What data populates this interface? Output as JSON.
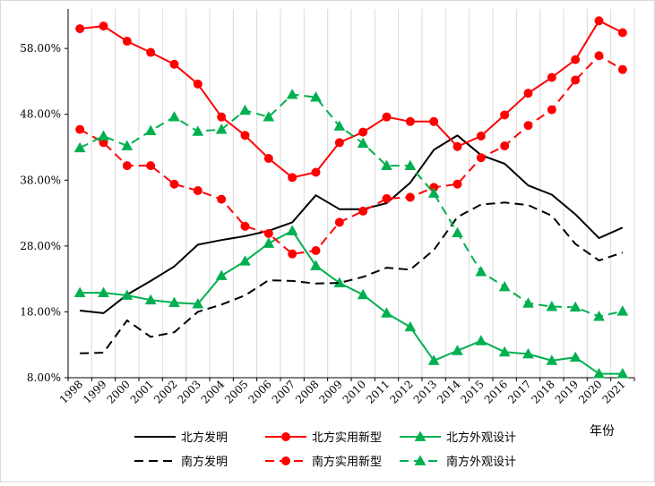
{
  "chart_data": {
    "type": "line",
    "title": "",
    "xlabel": "年份",
    "ylabel": "",
    "ylim": [
      8,
      64
    ],
    "y_ticks": [
      "8.00%",
      "18.00%",
      "28.00%",
      "38.00%",
      "48.00%",
      "58.00%"
    ],
    "grid": "vertical",
    "legend_position": "bottom",
    "categories": [
      "1998",
      "1999",
      "2000",
      "2001",
      "2002",
      "2003",
      "2004",
      "2005",
      "2006",
      "2007",
      "2008",
      "2009",
      "2010",
      "2011",
      "2012",
      "2013",
      "2014",
      "2015",
      "2016",
      "2017",
      "2018",
      "2019",
      "2020",
      "2021"
    ],
    "series": [
      {
        "name": "北方发明",
        "color": "#000000",
        "dashed": false,
        "marker": "none",
        "values": [
          18.2,
          17.8,
          20.6,
          22.7,
          24.9,
          28.2,
          28.9,
          29.5,
          30.3,
          31.6,
          35.7,
          33.6,
          33.6,
          34.5,
          37.6,
          42.6,
          44.8,
          41.8,
          40.5,
          37.2,
          35.8,
          32.8,
          29.2,
          30.8
        ]
      },
      {
        "name": "北方实用新型",
        "color": "#ff0000",
        "dashed": false,
        "marker": "circle",
        "values": [
          61.0,
          61.4,
          59.1,
          57.4,
          55.6,
          52.6,
          47.6,
          44.8,
          41.3,
          38.4,
          39.2,
          43.7,
          45.3,
          47.6,
          46.9,
          46.9,
          43.1,
          44.7,
          47.9,
          51.2,
          53.6,
          56.3,
          62.2,
          60.4
        ]
      },
      {
        "name": "北方外观设计",
        "color": "#00b050",
        "dashed": false,
        "marker": "triangle",
        "values": [
          20.9,
          20.9,
          20.5,
          19.8,
          19.4,
          19.2,
          23.5,
          25.7,
          28.4,
          30.3,
          25.0,
          22.4,
          20.6,
          17.8,
          15.7,
          10.6,
          12.1,
          13.6,
          11.9,
          11.6,
          10.6,
          11.1,
          8.6,
          8.6
        ]
      },
      {
        "name": "南方发明",
        "color": "#000000",
        "dashed": true,
        "marker": "none",
        "values": [
          11.7,
          11.8,
          16.7,
          14.2,
          14.9,
          18.0,
          19.1,
          20.5,
          22.8,
          22.7,
          22.3,
          22.4,
          23.3,
          24.7,
          24.4,
          27.4,
          32.4,
          34.3,
          34.6,
          34.2,
          32.6,
          28.3,
          25.8,
          27.0
        ]
      },
      {
        "name": "南方实用新型",
        "color": "#ff0000",
        "dashed": true,
        "marker": "circle",
        "values": [
          45.7,
          43.7,
          40.2,
          40.2,
          37.4,
          36.4,
          35.1,
          31.0,
          29.9,
          26.8,
          27.3,
          31.6,
          33.3,
          35.2,
          35.4,
          36.9,
          37.4,
          41.4,
          43.2,
          46.3,
          48.7,
          53.2,
          56.9,
          54.8
        ]
      },
      {
        "name": "南方外观设计",
        "color": "#00b050",
        "dashed": true,
        "marker": "triangle",
        "values": [
          42.9,
          44.7,
          43.2,
          45.5,
          47.6,
          45.4,
          45.7,
          48.6,
          47.6,
          51.0,
          50.6,
          46.2,
          43.6,
          40.2,
          40.2,
          36.0,
          30.0,
          24.1,
          21.8,
          19.3,
          18.8,
          18.7,
          17.3,
          18.1
        ]
      }
    ]
  }
}
